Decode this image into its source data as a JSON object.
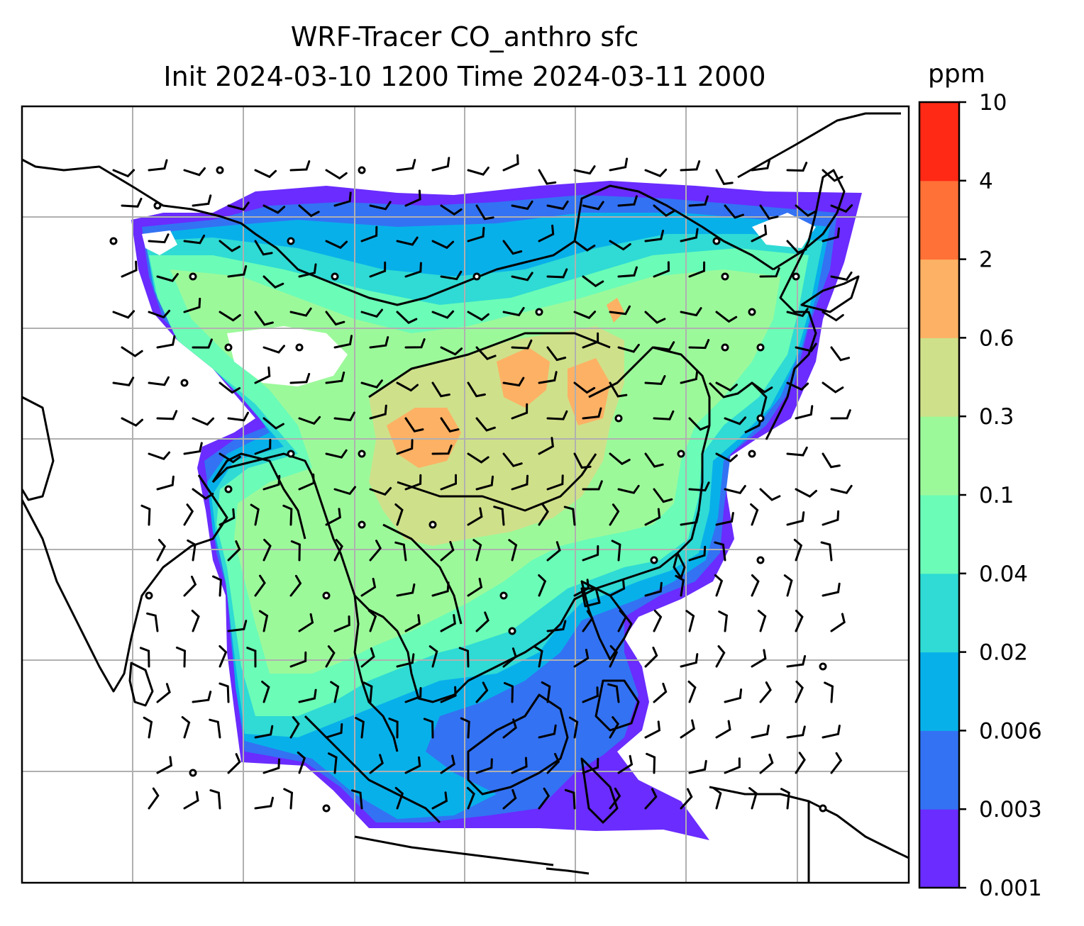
{
  "title": {
    "line1": "WRF-Tracer CO_anthro sfc",
    "line2": "Init 2024-03-10 1200 Time 2024-03-11 2000"
  },
  "colorbar": {
    "unit": "ppm",
    "levels": [
      "0.001",
      "0.003",
      "0.006",
      "0.02",
      "0.04",
      "0.1",
      "0.3",
      "0.6",
      "2",
      "4",
      "10"
    ],
    "colors": [
      "#6a2cff",
      "#3372f3",
      "#08b0ea",
      "#2fdbd4",
      "#6bfcb7",
      "#9cf99a",
      "#cfe08a",
      "#fdb164",
      "#ff7136",
      "#ff2915"
    ]
  },
  "map": {
    "features": [
      "coastlines",
      "country-borders",
      "gridlines",
      "wind-barbs",
      "calm-circles"
    ],
    "background": "#ffffff",
    "gridline_color": "#b0b0b0"
  }
}
